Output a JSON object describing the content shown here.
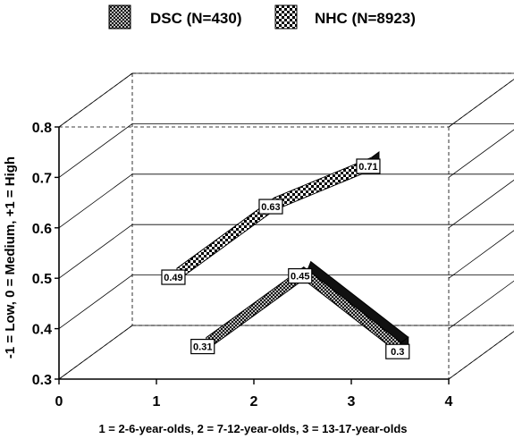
{
  "chart_data": {
    "type": "line",
    "title": "",
    "xlabel": "1 = 2-6-year-olds, 2 = 7-12-year-olds, 3 = 13-17-year-olds",
    "ylabel": "-1 = Low, 0 = Medium, +1 = High",
    "x_tick_labels": [
      "0",
      "1",
      "2",
      "3",
      "4"
    ],
    "y_tick_labels": [
      "0.3",
      "0.4",
      "0.5",
      "0.6",
      "0.7",
      "0.8"
    ],
    "xlim": [
      0,
      4
    ],
    "ylim": [
      0.3,
      0.8
    ],
    "grid": true,
    "legend_position": "top",
    "categories": [
      1,
      2,
      3
    ],
    "series": [
      {
        "name": "DSC (N=430)",
        "values": [
          0.31,
          0.45,
          0.3
        ],
        "labels": [
          "0.31",
          "0.45",
          "0.3"
        ],
        "pattern": "diagonal-check"
      },
      {
        "name": "NHC (N=8923)",
        "values": [
          0.49,
          0.63,
          0.71
        ],
        "labels": [
          "0.49",
          "0.63",
          "0.71"
        ],
        "pattern": "checker"
      }
    ]
  }
}
